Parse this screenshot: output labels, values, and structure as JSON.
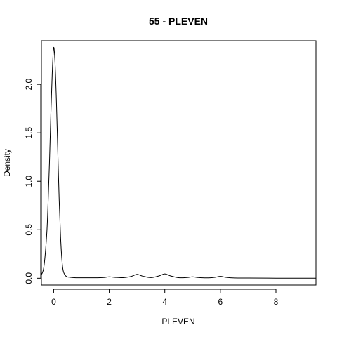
{
  "chart_data": {
    "type": "line",
    "title": "55 - PLEVEN",
    "xlabel": "PLEVEN",
    "ylabel": "Density",
    "xlim": [
      -0.44,
      9.44
    ],
    "ylim": [
      -0.07,
      2.45
    ],
    "x_ticks": [
      0,
      2,
      4,
      6,
      8
    ],
    "x_tick_labels": [
      "0",
      "2",
      "4",
      "6",
      "8"
    ],
    "y_ticks": [
      0.0,
      0.5,
      1.0,
      1.5,
      2.0
    ],
    "y_tick_labels": [
      "0.0",
      "0.5",
      "1.0",
      "1.5",
      "2.0"
    ],
    "grid": false,
    "series": [
      {
        "x": [
          -0.45,
          -0.35,
          -0.25,
          -0.2,
          -0.15,
          -0.1,
          -0.05,
          0.0,
          0.05,
          0.1,
          0.15,
          0.2,
          0.25,
          0.3,
          0.35,
          0.45,
          0.6,
          0.8,
          1.0,
          1.5,
          1.8,
          2.0,
          2.2,
          2.5,
          2.8,
          3.0,
          3.2,
          3.5,
          3.8,
          4.0,
          4.2,
          4.5,
          4.8,
          5.0,
          5.2,
          5.5,
          5.8,
          6.0,
          6.2,
          6.5,
          7.0,
          8.0,
          9.0,
          9.45
        ],
        "y": [
          0.03,
          0.12,
          0.45,
          0.78,
          1.2,
          1.7,
          2.12,
          2.38,
          2.22,
          1.82,
          1.3,
          0.8,
          0.42,
          0.18,
          0.07,
          0.02,
          0.01,
          0.005,
          0.005,
          0.005,
          0.008,
          0.015,
          0.01,
          0.006,
          0.02,
          0.04,
          0.022,
          0.007,
          0.025,
          0.045,
          0.025,
          0.006,
          0.008,
          0.015,
          0.008,
          0.004,
          0.01,
          0.02,
          0.01,
          0.003,
          0.002,
          0.001,
          0.001,
          0.001
        ]
      }
    ]
  }
}
